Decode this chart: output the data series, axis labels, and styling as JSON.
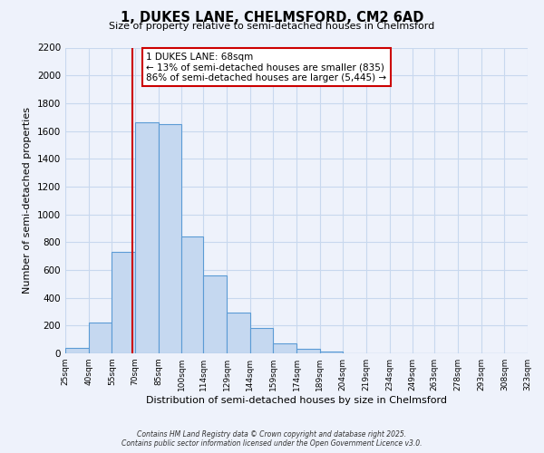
{
  "title": "1, DUKES LANE, CHELMSFORD, CM2 6AD",
  "subtitle": "Size of property relative to semi-detached houses in Chelmsford",
  "xlabel": "Distribution of semi-detached houses by size in Chelmsford",
  "ylabel": "Number of semi-detached properties",
  "bar_values": [
    40,
    220,
    730,
    1660,
    1650,
    840,
    560,
    295,
    180,
    70,
    30,
    15,
    0,
    0,
    0,
    0,
    0,
    0,
    0,
    0
  ],
  "bar_color": "#c5d8f0",
  "bar_edge_color": "#5b9bd5",
  "grid_color": "#c8d8ee",
  "background_color": "#eef2fb",
  "vline_x": 68,
  "vline_color": "#cc0000",
  "all_edges": [
    25,
    40,
    55,
    70,
    85,
    100,
    114,
    129,
    144,
    159,
    174,
    189,
    204,
    219,
    234,
    249,
    263,
    278,
    293,
    308,
    323
  ],
  "annotation_title": "1 DUKES LANE: 68sqm",
  "annotation_line1": "← 13% of semi-detached houses are smaller (835)",
  "annotation_line2": "86% of semi-detached houses are larger (5,445) →",
  "ylim": [
    0,
    2200
  ],
  "yticks": [
    0,
    200,
    400,
    600,
    800,
    1000,
    1200,
    1400,
    1600,
    1800,
    2000,
    2200
  ],
  "footer1": "Contains HM Land Registry data © Crown copyright and database right 2025.",
  "footer2": "Contains public sector information licensed under the Open Government Licence v3.0."
}
